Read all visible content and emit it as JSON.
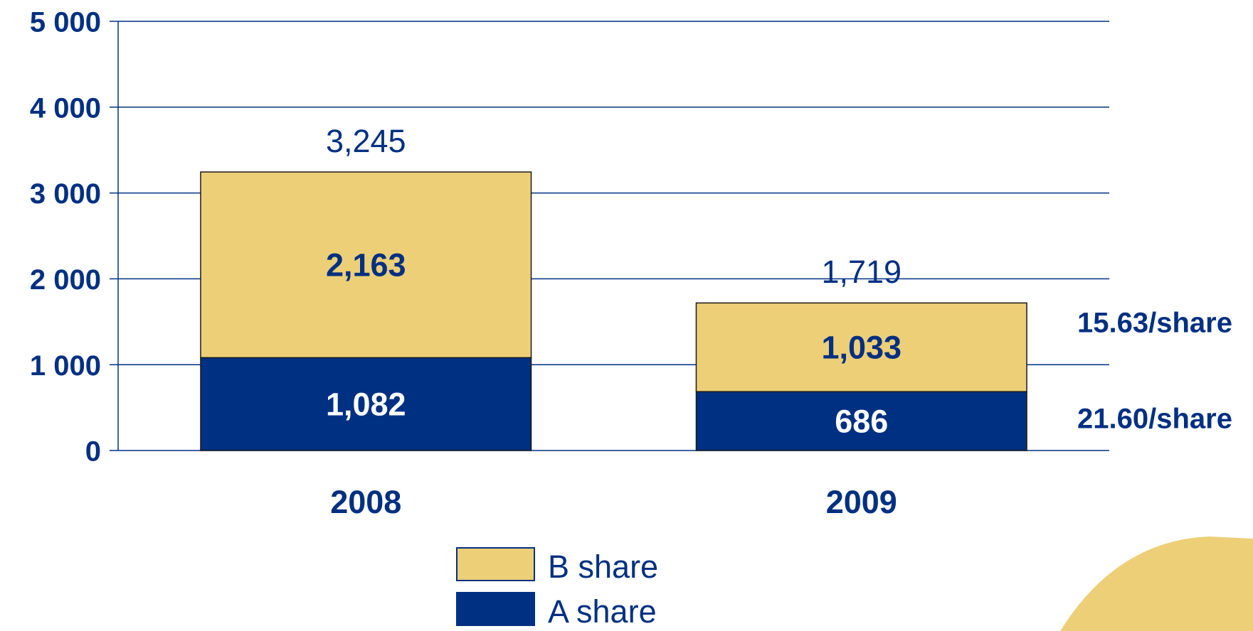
{
  "chart_data": {
    "type": "stacked_bar",
    "categories": [
      "2008",
      "2009"
    ],
    "series": [
      {
        "name": "A share",
        "color": "#003082",
        "values": [
          1082,
          686
        ],
        "value_labels": [
          "1,082",
          "686"
        ]
      },
      {
        "name": "B share",
        "color": "#EDCF78",
        "values": [
          2163,
          1033
        ],
        "value_labels": [
          "2,163",
          "1,033"
        ]
      }
    ],
    "totals": [
      3245,
      1719
    ],
    "total_labels": [
      "3,245",
      "1,719"
    ],
    "annotations": [
      "15.63/share",
      "21.60/share"
    ],
    "ylim": [
      0,
      5000
    ],
    "yticks": [
      {
        "value": 0,
        "label": "0"
      },
      {
        "value": 1000,
        "label": "1 000"
      },
      {
        "value": 2000,
        "label": "2 000"
      },
      {
        "value": 3000,
        "label": "3 000"
      },
      {
        "value": 4000,
        "label": "4 000"
      },
      {
        "value": 5000,
        "label": "5 000"
      }
    ],
    "grid": true
  }
}
